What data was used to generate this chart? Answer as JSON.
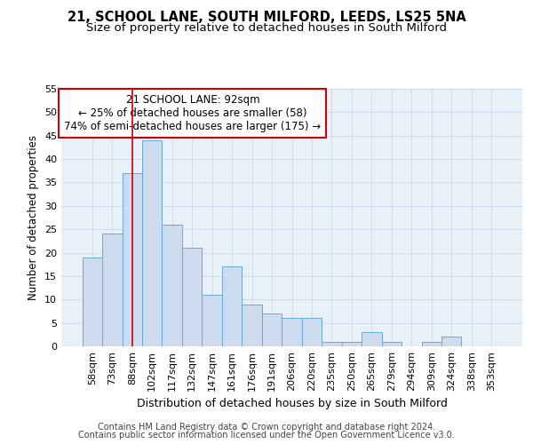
{
  "title1": "21, SCHOOL LANE, SOUTH MILFORD, LEEDS, LS25 5NA",
  "title2": "Size of property relative to detached houses in South Milford",
  "xlabel": "Distribution of detached houses by size in South Milford",
  "ylabel": "Number of detached properties",
  "categories": [
    "58sqm",
    "73sqm",
    "88sqm",
    "102sqm",
    "117sqm",
    "132sqm",
    "147sqm",
    "161sqm",
    "176sqm",
    "191sqm",
    "206sqm",
    "220sqm",
    "235sqm",
    "250sqm",
    "265sqm",
    "279sqm",
    "294sqm",
    "309sqm",
    "324sqm",
    "338sqm",
    "353sqm"
  ],
  "values": [
    19,
    24,
    37,
    44,
    26,
    21,
    11,
    17,
    9,
    7,
    6,
    6,
    1,
    1,
    3,
    1,
    0,
    1,
    2,
    0,
    0
  ],
  "bar_color": "#ccdcee",
  "bar_edge_color": "#6aaad4",
  "grid_color": "#c8d8e8",
  "bg_color": "#e8f0f8",
  "annotation_text": "21 SCHOOL LANE: 92sqm\n← 25% of detached houses are smaller (58)\n74% of semi-detached houses are larger (175) →",
  "annotation_box_color": "white",
  "annotation_box_edge": "#cc0000",
  "vline_x_index": 2,
  "vline_color": "#cc0000",
  "ylim": [
    0,
    55
  ],
  "yticks": [
    0,
    5,
    10,
    15,
    20,
    25,
    30,
    35,
    40,
    45,
    50,
    55
  ],
  "footer1": "Contains HM Land Registry data © Crown copyright and database right 2024.",
  "footer2": "Contains public sector information licensed under the Open Government Licence v3.0.",
  "title1_fontsize": 10.5,
  "title2_fontsize": 9.5,
  "tick_fontsize": 8,
  "xlabel_fontsize": 9,
  "ylabel_fontsize": 8.5,
  "annotation_fontsize": 8.5,
  "footer_fontsize": 7
}
